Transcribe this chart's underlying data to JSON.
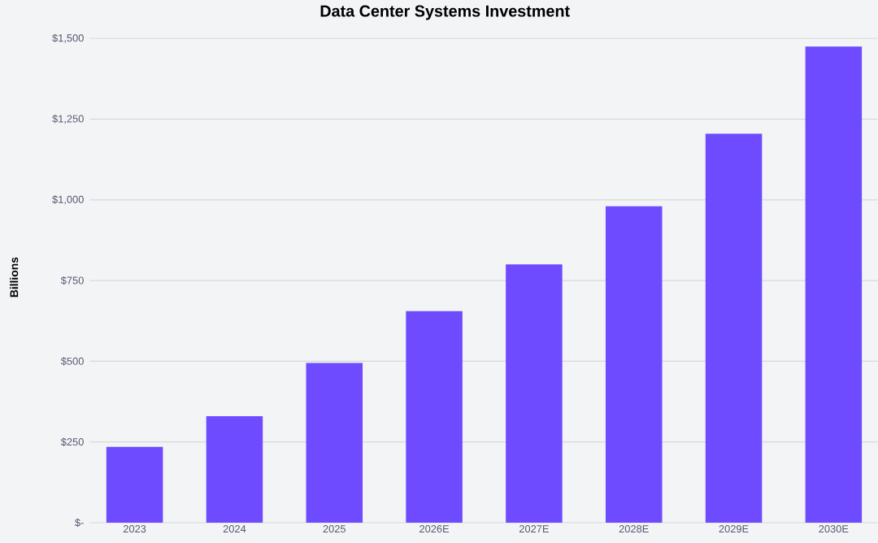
{
  "chart_data": {
    "type": "bar",
    "title": "Data Center Systems Investment",
    "ylabel": "Billions",
    "categories": [
      "2023",
      "2024",
      "2025",
      "2026E",
      "2027E",
      "2028E",
      "2029E",
      "2030E"
    ],
    "values": [
      235,
      330,
      495,
      655,
      800,
      980,
      1205,
      1475
    ],
    "color": "#6e4bff",
    "ylim": [
      0,
      1500
    ],
    "yticks": [
      {
        "value": 0,
        "label": "$-"
      },
      {
        "value": 250,
        "label": "$250"
      },
      {
        "value": 500,
        "label": "$500"
      },
      {
        "value": 750,
        "label": "$750"
      },
      {
        "value": 1000,
        "label": "$1,000"
      },
      {
        "value": 1250,
        "label": "$1,250"
      },
      {
        "value": 1500,
        "label": "$1,500"
      }
    ],
    "grid": "y"
  }
}
